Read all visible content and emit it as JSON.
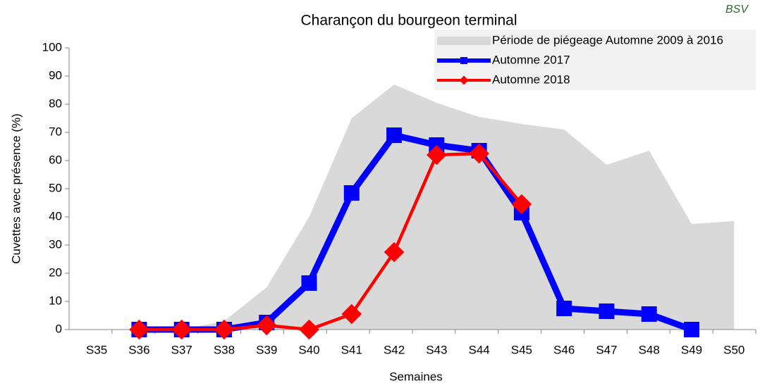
{
  "chart_data": {
    "type": "line",
    "title": "Charançon du bourgeon terminal",
    "logo": "BSV",
    "x_label": "Semaines",
    "y_label": "Cuvettes avec présence (%)",
    "categories": [
      "S35",
      "S36",
      "S37",
      "S38",
      "S39",
      "S40",
      "S41",
      "S42",
      "S43",
      "S44",
      "S45",
      "S46",
      "S47",
      "S48",
      "S49",
      "S50"
    ],
    "ylim": [
      0,
      100
    ],
    "yticks": [
      0,
      10,
      20,
      30,
      40,
      50,
      60,
      70,
      80,
      90,
      100
    ],
    "grid": false,
    "legend": "top-right",
    "series": [
      {
        "name": "Période de piégeage Automne 2009 à 2016",
        "kind": "area",
        "color": "#d9d9d9",
        "values": [
          null,
          0,
          0,
          3,
          15,
          40,
          75,
          87,
          80.5,
          75.5,
          73,
          71,
          58.5,
          63.5,
          37.5,
          38.5
        ]
      },
      {
        "name": "Automne 2017",
        "kind": "line",
        "marker": "square",
        "color": "#0000ff",
        "values": [
          null,
          0,
          0,
          0,
          2.5,
          16.5,
          48.5,
          69,
          65.5,
          63.5,
          41.5,
          7.5,
          6.5,
          5.5,
          0,
          null
        ]
      },
      {
        "name": "Automne 2018",
        "kind": "line",
        "marker": "diamond",
        "color": "#ff0000",
        "values": [
          null,
          0,
          0,
          0,
          1.5,
          0,
          5.5,
          27.5,
          62,
          62.5,
          44.5,
          null,
          null,
          null,
          null,
          null
        ]
      }
    ]
  }
}
